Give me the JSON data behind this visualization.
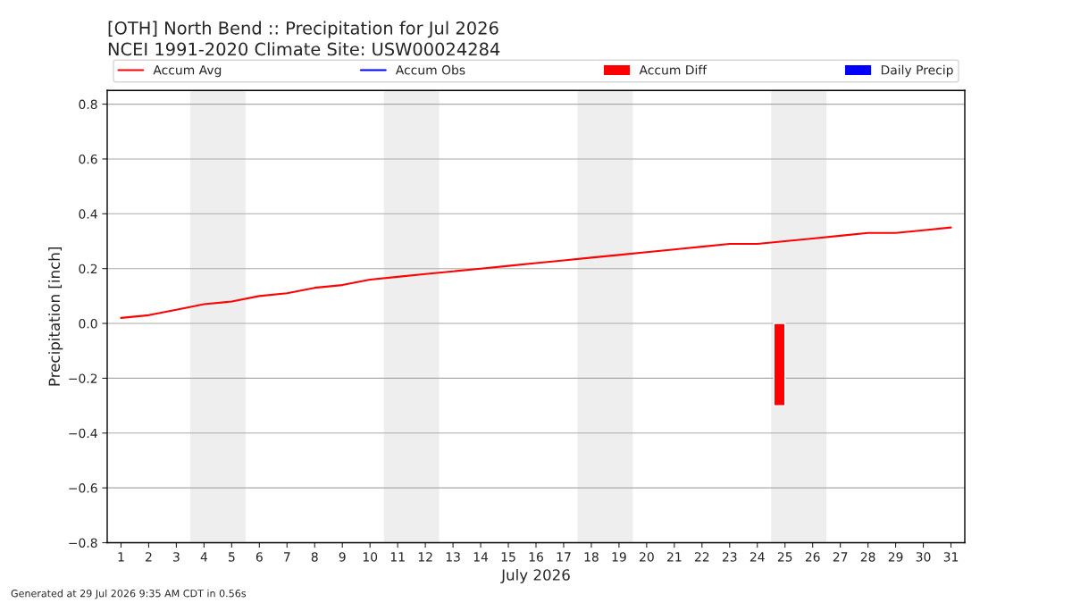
{
  "chart_data": {
    "type": "line",
    "title": "[OTH] North Bend :: Precipitation for Jul 2026",
    "subtitle": "NCEI 1991-2020 Climate Site: USW00024284",
    "xlabel": "July 2026",
    "ylabel": "Precipitation [inch]",
    "x": [
      1,
      2,
      3,
      4,
      5,
      6,
      7,
      8,
      9,
      10,
      11,
      12,
      13,
      14,
      15,
      16,
      17,
      18,
      19,
      20,
      21,
      22,
      23,
      24,
      25,
      26,
      27,
      28,
      29,
      30,
      31
    ],
    "series": [
      {
        "name": "Accum Avg",
        "color": "#ff0000",
        "values": [
          0.02,
          0.03,
          0.05,
          0.07,
          0.08,
          0.1,
          0.11,
          0.13,
          0.14,
          0.16,
          0.17,
          0.18,
          0.19,
          0.2,
          0.21,
          0.22,
          0.23,
          0.24,
          0.25,
          0.26,
          0.27,
          0.28,
          0.29,
          0.29,
          0.3,
          0.31,
          0.32,
          0.33,
          0.33,
          0.34,
          0.35
        ]
      },
      {
        "name": "Accum Obs",
        "color": "#0000ff",
        "values": [
          null,
          null,
          null,
          null,
          null,
          null,
          null,
          null,
          null,
          null,
          null,
          null,
          null,
          null,
          null,
          null,
          null,
          null,
          null,
          null,
          null,
          null,
          null,
          null,
          null,
          null,
          null,
          null,
          null,
          null,
          null
        ]
      },
      {
        "name": "Accum Diff",
        "type": "bar",
        "color": "#ff0000",
        "x": [
          24.8
        ],
        "values": [
          -0.3
        ]
      },
      {
        "name": "Daily Precip",
        "type": "bar",
        "color": "#0000ff",
        "values": [
          null,
          null,
          null,
          null,
          null,
          null,
          null,
          null,
          null,
          null,
          null,
          null,
          null,
          null,
          null,
          null,
          null,
          null,
          null,
          null,
          null,
          null,
          null,
          null,
          null,
          null,
          null,
          null,
          null,
          null,
          null
        ]
      }
    ],
    "xlim": [
      0.5,
      31.5
    ],
    "xticks": [
      1,
      2,
      3,
      4,
      5,
      6,
      7,
      8,
      9,
      10,
      11,
      12,
      13,
      14,
      15,
      16,
      17,
      18,
      19,
      20,
      21,
      22,
      23,
      24,
      25,
      26,
      27,
      28,
      29,
      30,
      31
    ],
    "ylim": [
      -0.8,
      0.85
    ],
    "yticks": [
      {
        "value": -0.8,
        "label": "−0.8"
      },
      {
        "value": -0.6,
        "label": "−0.6"
      },
      {
        "value": -0.4,
        "label": "−0.4"
      },
      {
        "value": -0.2,
        "label": "−0.2"
      },
      {
        "value": 0,
        "label": "0.0"
      },
      {
        "value": 0.2,
        "label": "0.2"
      },
      {
        "value": 0.4,
        "label": "0.4"
      },
      {
        "value": 0.6,
        "label": "0.6"
      },
      {
        "value": 0.8,
        "label": "0.8"
      }
    ],
    "bands": [
      {
        "axis": "x",
        "from": 3.5,
        "to": 5.5,
        "color": "#eeeeee"
      },
      {
        "axis": "x",
        "from": 10.5,
        "to": 12.5,
        "color": "#eeeeee"
      },
      {
        "axis": "x",
        "from": 17.5,
        "to": 19.5,
        "color": "#eeeeee"
      },
      {
        "axis": "x",
        "from": 24.5,
        "to": 26.5,
        "color": "#eeeeee"
      }
    ],
    "grid": "y",
    "legend": "top",
    "annotations": [
      "Generated at 29 Jul 2026 9:35 AM CDT in 0.56s"
    ]
  }
}
